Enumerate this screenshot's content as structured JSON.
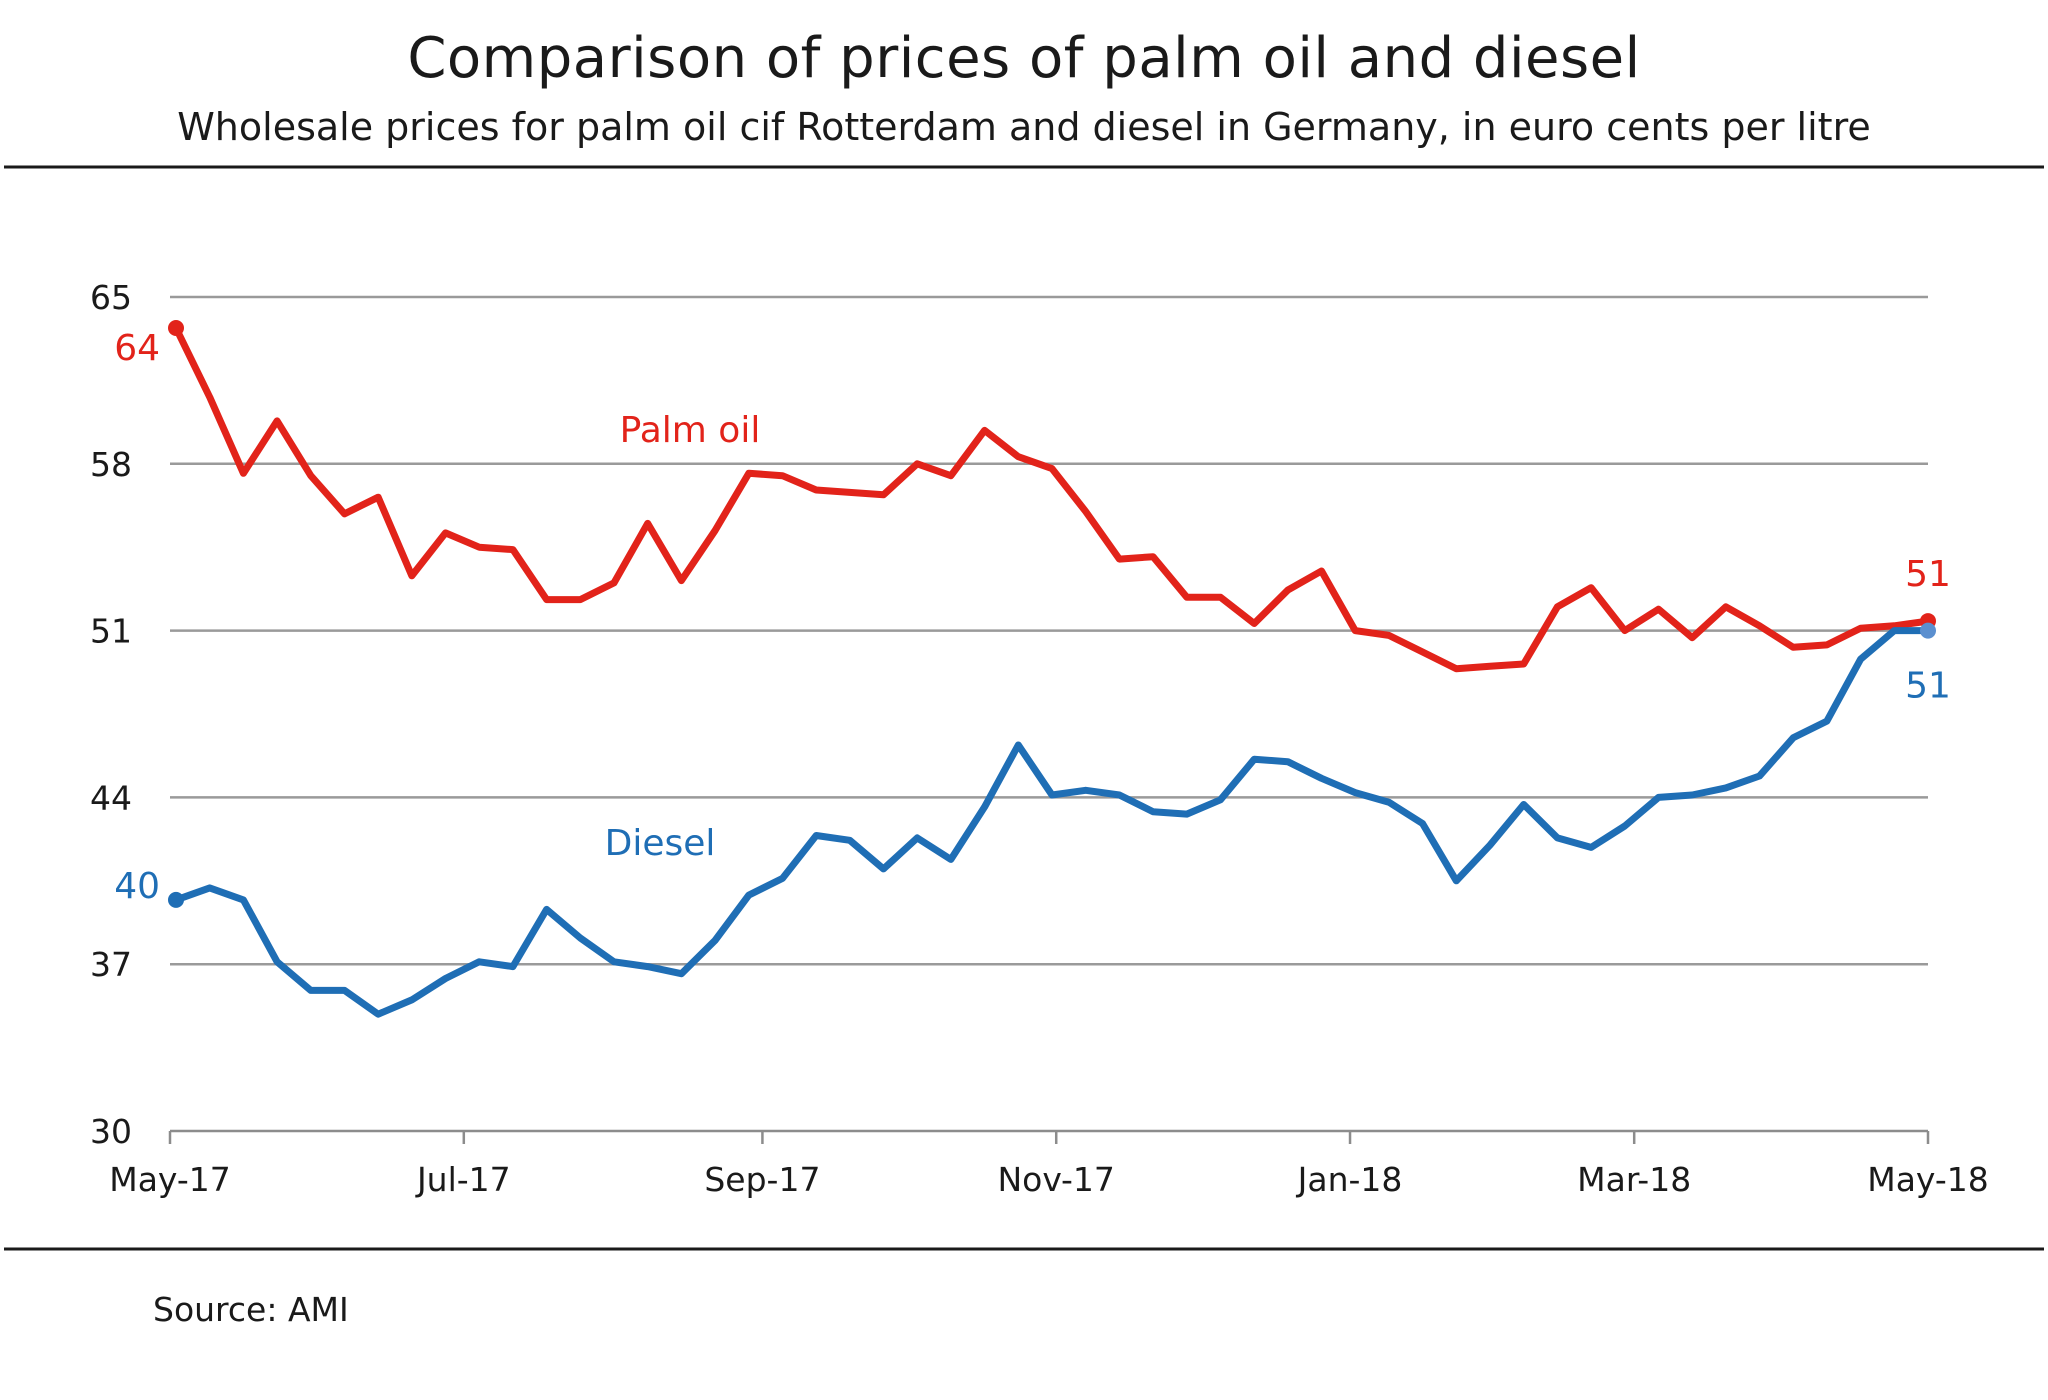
{
  "chart_data": {
    "type": "line",
    "title": "Comparison of prices of palm oil and diesel",
    "subtitle": "Wholesale prices for palm oil cif Rotterdam and diesel in Germany, in euro cents per  litre",
    "source": "Source:  AMI",
    "xlabel": "",
    "ylabel": "",
    "ylim": [
      30,
      65
    ],
    "yticks": [
      30,
      37,
      44,
      51,
      58,
      65
    ],
    "grid": true,
    "x_range": [
      "2017-05-01",
      "2018-05-01"
    ],
    "x_ticks": [
      {
        "label": "May-17",
        "date": "2017-05-01"
      },
      {
        "label": "Jul-17",
        "date": "2017-07-01"
      },
      {
        "label": "Sep-17",
        "date": "2017-09-01"
      },
      {
        "label": "Nov-17",
        "date": "2017-11-01"
      },
      {
        "label": "Jan-18",
        "date": "2018-01-01"
      },
      {
        "label": "Mar-18",
        "date": "2018-03-01"
      },
      {
        "label": "May-18",
        "date": "2018-05-01"
      }
    ],
    "series": [
      {
        "name": "Palm oil",
        "color": "#e2231a",
        "start_label": "64",
        "end_label": "51",
        "x": [
          "2017-05-07",
          "2017-05-14",
          "2017-05-21",
          "2017-05-28",
          "2017-06-04",
          "2017-06-11",
          "2017-06-18",
          "2017-06-25",
          "2017-07-02",
          "2017-07-09",
          "2017-07-16",
          "2017-07-23",
          "2017-07-30",
          "2017-08-06",
          "2017-08-13",
          "2017-08-20",
          "2017-08-27",
          "2017-09-03",
          "2017-09-10",
          "2017-09-17",
          "2017-09-24",
          "2017-10-01",
          "2017-10-08",
          "2017-10-15",
          "2017-10-22",
          "2017-10-29",
          "2017-11-05",
          "2017-11-12",
          "2017-11-19",
          "2017-11-26",
          "2017-12-03",
          "2017-12-10",
          "2017-12-17",
          "2017-12-24",
          "2017-12-31",
          "2018-01-07",
          "2018-01-14",
          "2018-01-21",
          "2018-01-28",
          "2018-02-04",
          "2018-02-11",
          "2018-02-18",
          "2018-02-25",
          "2018-03-04",
          "2018-03-11",
          "2018-03-18",
          "2018-03-25",
          "2018-04-01",
          "2018-04-08",
          "2018-04-15",
          "2018-04-22",
          "2018-04-29",
          "2018-05-06"
        ],
        "y": [
          63.7,
          60.8,
          57.6,
          59.8,
          57.5,
          55.9,
          56.6,
          53.3,
          55.1,
          54.5,
          54.4,
          52.3,
          52.3,
          53.0,
          55.5,
          53.1,
          55.2,
          57.6,
          57.5,
          56.9,
          56.8,
          56.7,
          58.0,
          57.5,
          59.4,
          58.3,
          57.8,
          56.0,
          54.0,
          54.1,
          52.4,
          52.4,
          51.3,
          52.7,
          53.5,
          51.0,
          50.8,
          50.1,
          49.4,
          49.5,
          49.6,
          52.0,
          52.8,
          51.0,
          51.9,
          50.7,
          52.0,
          51.2,
          50.3,
          50.4,
          51.1,
          51.2,
          51.4
        ]
      },
      {
        "name": "Diesel",
        "color": "#1f6eb5",
        "start_label": "40",
        "end_label": "51",
        "x": [
          "2017-05-07",
          "2017-05-14",
          "2017-05-21",
          "2017-05-28",
          "2017-06-04",
          "2017-06-11",
          "2017-06-18",
          "2017-06-25",
          "2017-07-02",
          "2017-07-09",
          "2017-07-16",
          "2017-07-23",
          "2017-07-30",
          "2017-08-06",
          "2017-08-13",
          "2017-08-20",
          "2017-08-27",
          "2017-09-03",
          "2017-09-10",
          "2017-09-17",
          "2017-09-24",
          "2017-10-01",
          "2017-10-08",
          "2017-10-15",
          "2017-10-22",
          "2017-10-29",
          "2017-11-05",
          "2017-11-12",
          "2017-11-19",
          "2017-11-26",
          "2017-12-03",
          "2017-12-10",
          "2017-12-17",
          "2017-12-24",
          "2017-12-31",
          "2018-01-07",
          "2018-01-14",
          "2018-01-21",
          "2018-01-28",
          "2018-02-04",
          "2018-02-11",
          "2018-02-18",
          "2018-02-25",
          "2018-03-04",
          "2018-03-11",
          "2018-03-18",
          "2018-03-25",
          "2018-04-01",
          "2018-04-08",
          "2018-04-15",
          "2018-04-22",
          "2018-04-29",
          "2018-05-06"
        ],
        "y": [
          39.7,
          40.2,
          39.7,
          37.1,
          35.9,
          35.9,
          34.9,
          35.5,
          36.4,
          37.1,
          36.9,
          39.3,
          38.1,
          37.1,
          36.9,
          36.6,
          38.0,
          39.9,
          40.6,
          42.4,
          42.2,
          41.0,
          42.3,
          41.4,
          43.6,
          46.2,
          44.1,
          44.3,
          44.1,
          43.4,
          43.3,
          43.9,
          45.6,
          45.5,
          44.8,
          44.2,
          43.8,
          42.9,
          40.5,
          42.0,
          43.7,
          42.3,
          41.9,
          42.8,
          44.0,
          44.1,
          44.4,
          44.9,
          46.5,
          47.2,
          49.8,
          51.0,
          51.0
        ]
      }
    ],
    "annotations": [
      {
        "text": "Palm oil",
        "series": "Palm oil"
      },
      {
        "text": "Diesel",
        "series": "Diesel"
      }
    ]
  }
}
